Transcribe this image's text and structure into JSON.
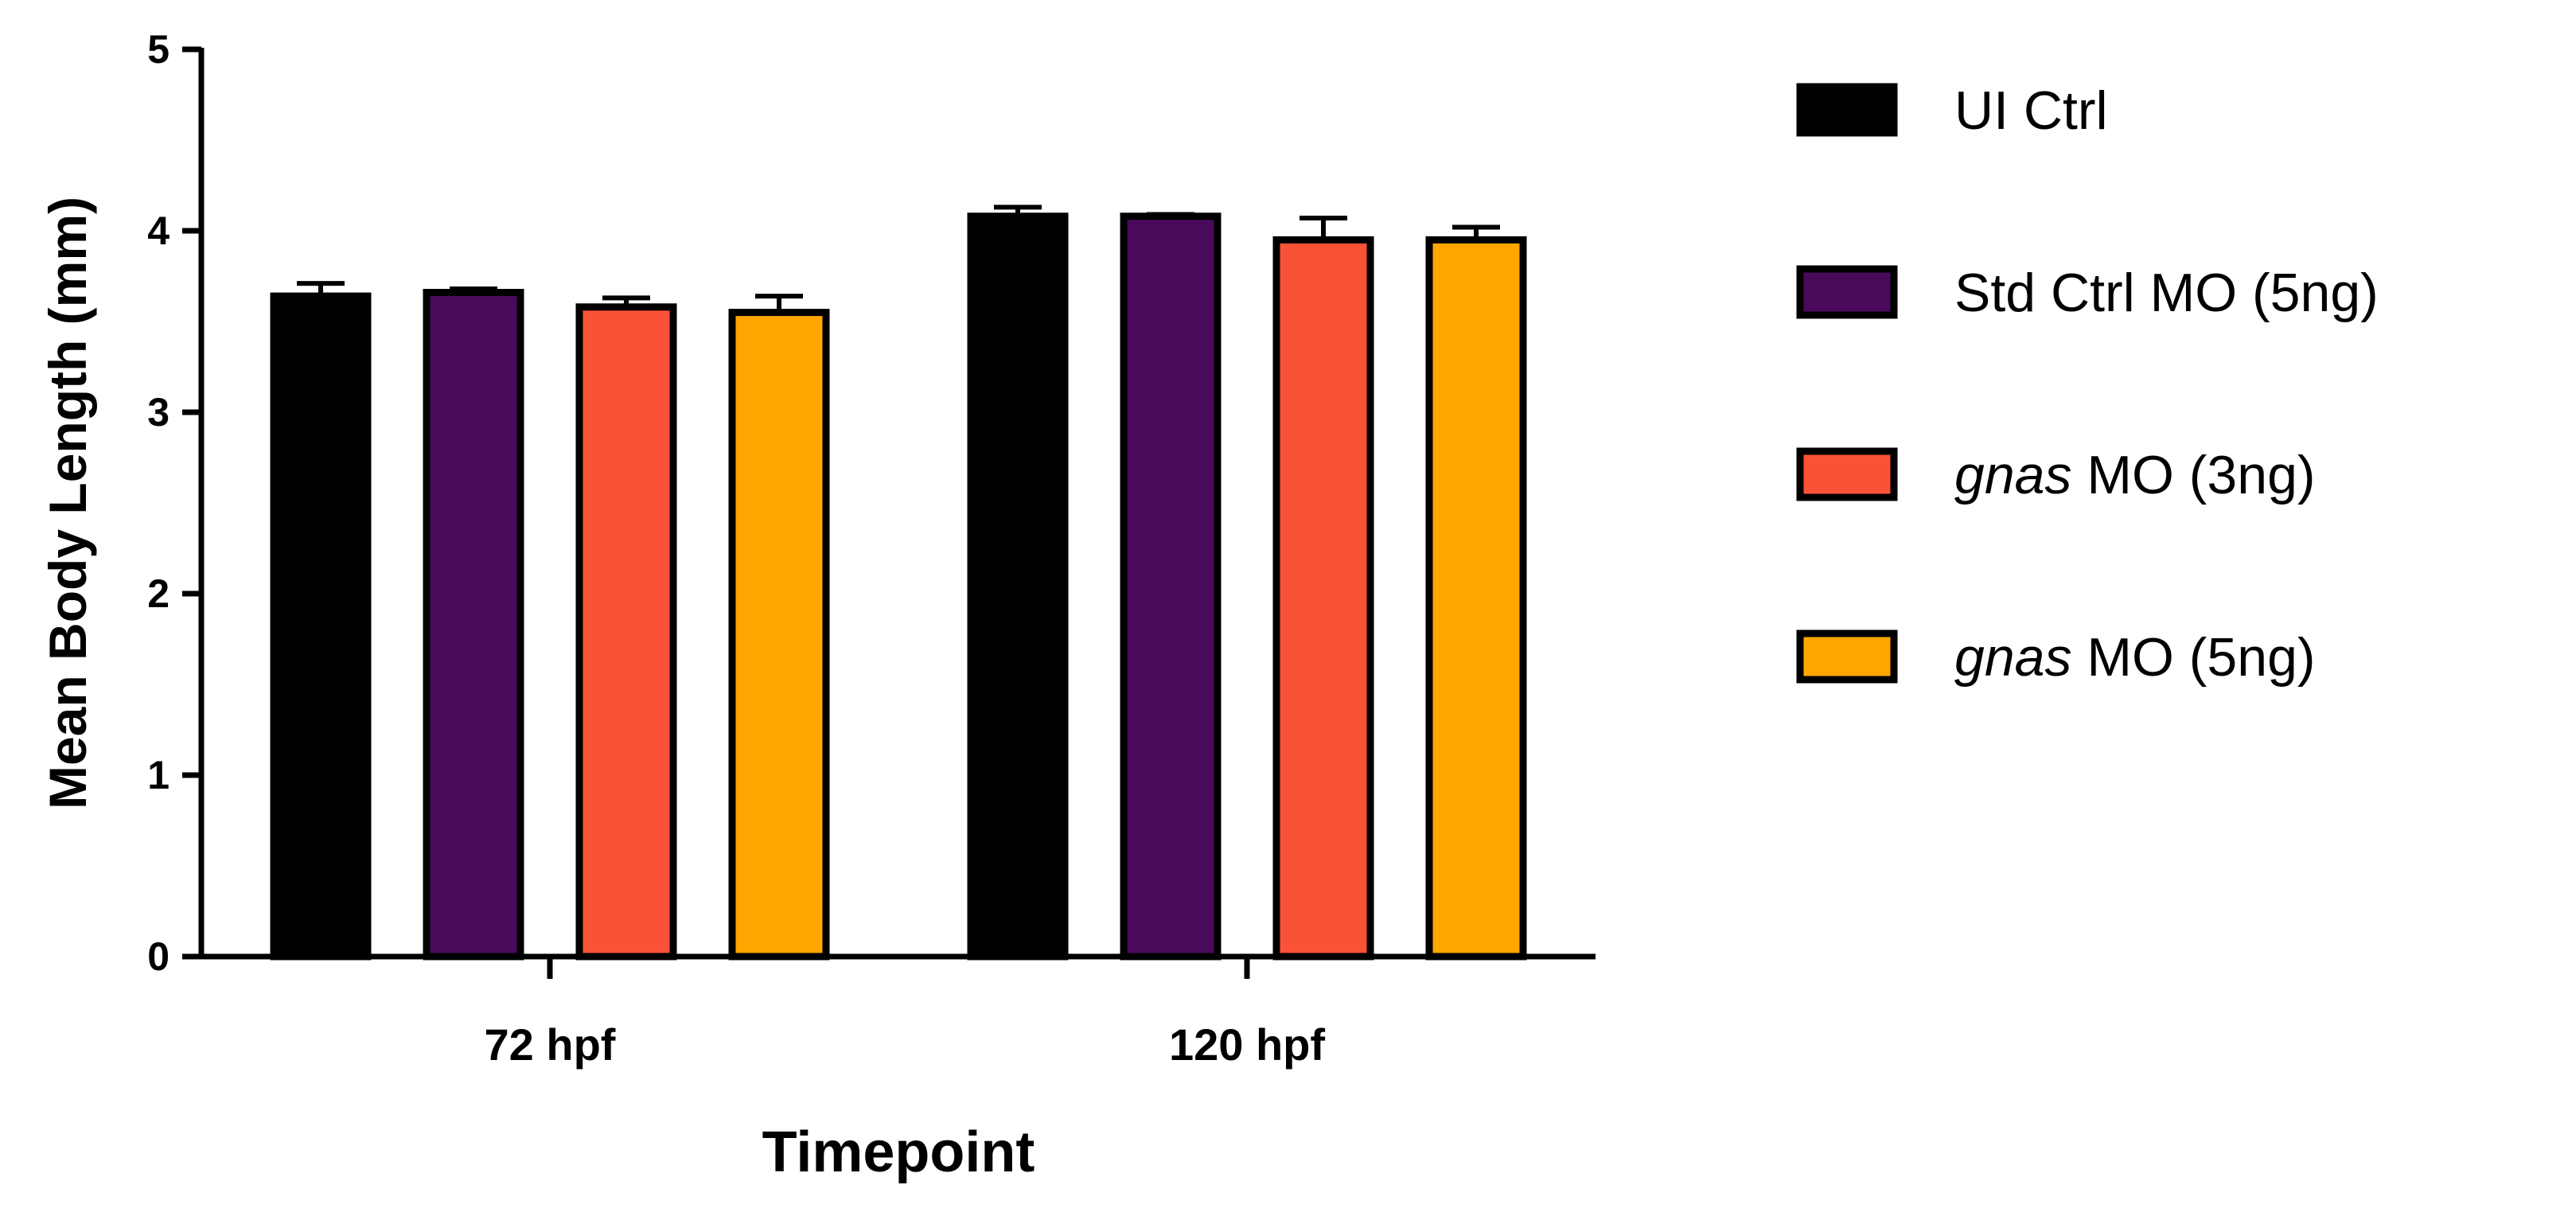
{
  "chart_data": {
    "type": "bar",
    "xlabel": "Timepoint",
    "ylabel": "Mean Body Length (mm)",
    "ylim": [
      0,
      5
    ],
    "yticks": [
      0,
      1,
      2,
      3,
      4,
      5
    ],
    "categories": [
      "72 hpf",
      "120 hpf"
    ],
    "legend_position": "right",
    "series": [
      {
        "name": "UI Ctrl",
        "color": "#000000",
        "values": [
          3.64,
          4.08
        ],
        "errors": [
          0.07,
          0.05
        ]
      },
      {
        "name": "Std Ctrl MO (5ng)",
        "color": "#4a0a5c",
        "values": [
          3.66,
          4.08
        ],
        "errors": [
          0.02,
          0.01
        ]
      },
      {
        "name": "gnas MO (3ng)",
        "name_prefix": "gnas",
        "name_suffix": " MO (3ng)",
        "color": "#fa5237",
        "values": [
          3.58,
          3.95
        ],
        "errors": [
          0.05,
          0.12
        ]
      },
      {
        "name": "gnas MO (5ng)",
        "name_prefix": "gnas",
        "name_suffix": " MO (5ng)",
        "color": "#ffa600",
        "values": [
          3.55,
          3.95
        ],
        "errors": [
          0.09,
          0.07
        ]
      }
    ]
  }
}
